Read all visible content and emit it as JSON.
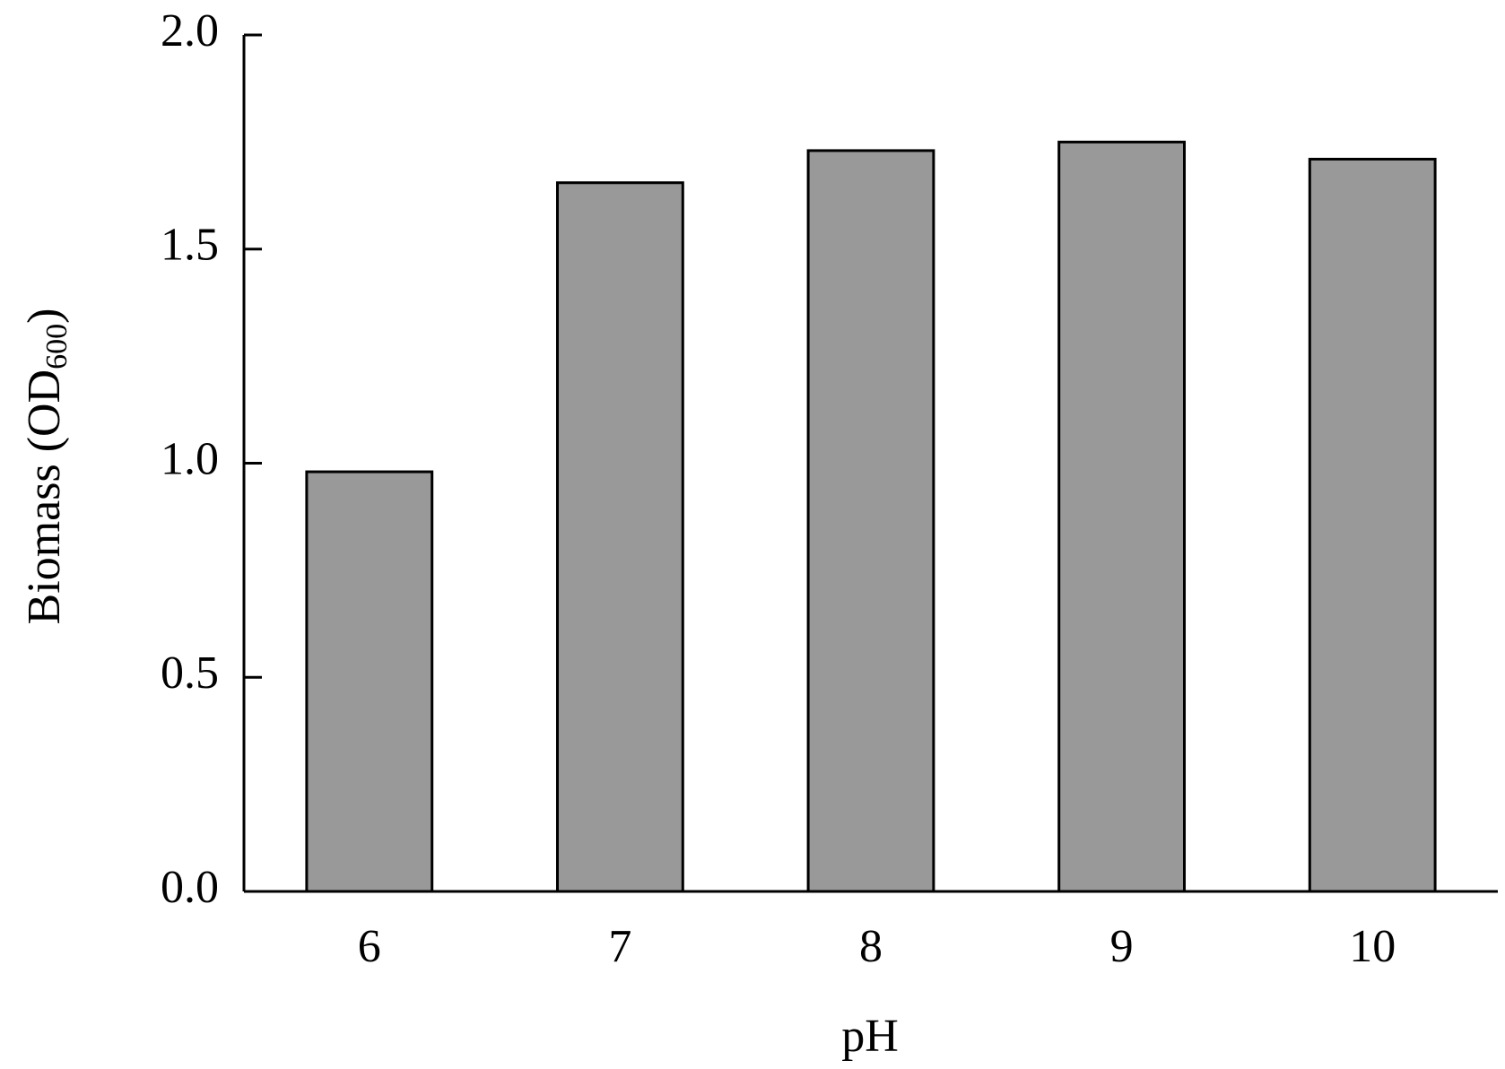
{
  "chart_data": {
    "type": "bar",
    "x_label": "pH",
    "y_label": [
      "Biomass (OD",
      "600",
      ")"
    ],
    "categories": [
      "6",
      "7",
      "8",
      "9",
      "10"
    ],
    "values": [
      0.98,
      1.655,
      1.73,
      1.75,
      1.71
    ],
    "color": "#999999",
    "ylim": [
      0,
      2
    ],
    "yticks": [
      {
        "value": 0,
        "label": "0.0"
      },
      0.5,
      {
        "value": 1,
        "label": "1.0"
      },
      1.5,
      {
        "value": 2,
        "label": "2.0"
      }
    ],
    "grid": false
  }
}
